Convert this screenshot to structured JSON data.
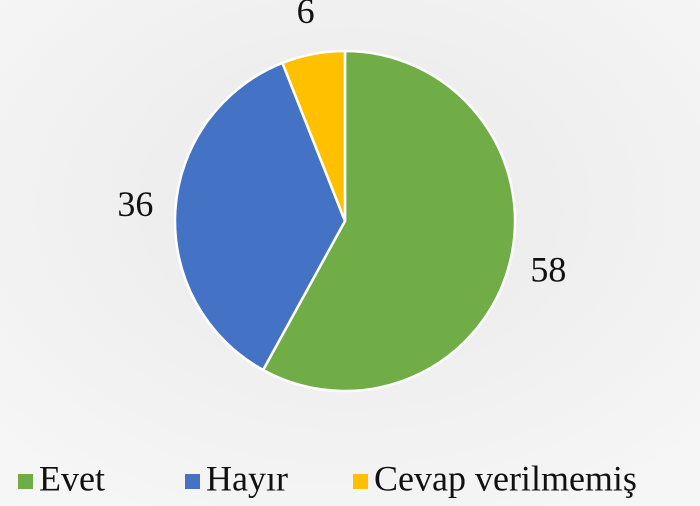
{
  "chart_data": {
    "type": "pie",
    "categories": [
      "Evet",
      "Hayır",
      "Cevap verilmemiş"
    ],
    "values": [
      58,
      36,
      6
    ],
    "colors": [
      "#70ad47",
      "#4472c4",
      "#ffc000"
    ],
    "legend": "bottom"
  }
}
